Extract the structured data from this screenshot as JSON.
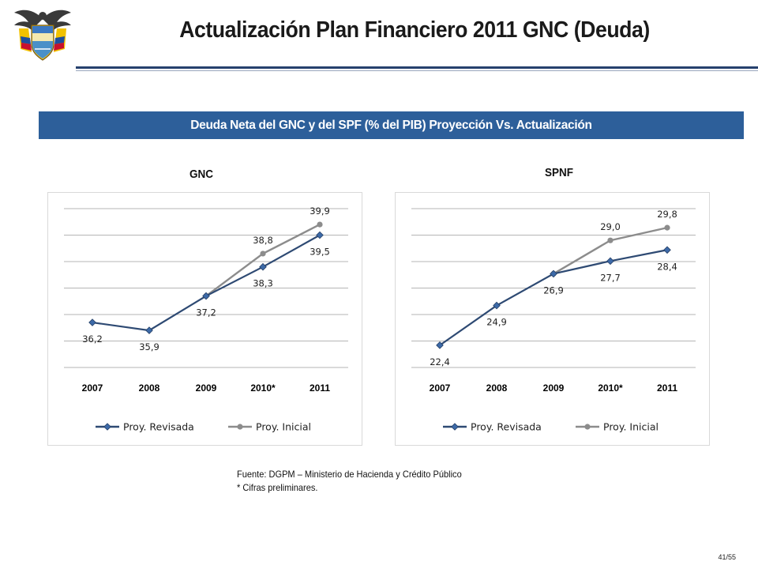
{
  "header": {
    "title": "Actualización Plan Financiero 2011 GNC (Deuda)"
  },
  "banner": {
    "text": "Deuda Neta del GNC y del SPF (% del PIB) Proyección Vs. Actualización"
  },
  "chart_data": [
    {
      "type": "line",
      "title": "GNC",
      "categories": [
        "2007",
        "2008",
        "2009",
        "2010*",
        "2011"
      ],
      "ylim": [
        34.5,
        40.5
      ],
      "grid": true,
      "legend": "bottom",
      "series": [
        {
          "name": "Proy. Revisada",
          "values": [
            36.2,
            35.9,
            37.2,
            38.3,
            39.5
          ],
          "color": "#2e4a73"
        },
        {
          "name": "Proy. Inicial",
          "values": [
            null,
            null,
            37.2,
            38.8,
            39.9
          ],
          "color": "#8c8c8c"
        }
      ],
      "data_labels": [
        {
          "text": "36,2",
          "series": 0,
          "index": 0,
          "pos": "below"
        },
        {
          "text": "35,9",
          "series": 0,
          "index": 1,
          "pos": "below"
        },
        {
          "text": "37,2",
          "series": 0,
          "index": 2,
          "pos": "below"
        },
        {
          "text": "38,3",
          "series": 0,
          "index": 3,
          "pos": "below"
        },
        {
          "text": "39,5",
          "series": 0,
          "index": 4,
          "pos": "below"
        },
        {
          "text": "38,8",
          "series": 1,
          "index": 3,
          "pos": "above"
        },
        {
          "text": "39,9",
          "series": 1,
          "index": 4,
          "pos": "above"
        }
      ]
    },
    {
      "type": "line",
      "title": "SPNF",
      "categories": [
        "2007",
        "2008",
        "2009",
        "2010*",
        "2011"
      ],
      "ylim": [
        21.0,
        31.0
      ],
      "grid": true,
      "legend": "bottom",
      "series": [
        {
          "name": "Proy. Revisada",
          "values": [
            22.4,
            24.9,
            26.9,
            27.7,
            28.4
          ],
          "color": "#2e4a73"
        },
        {
          "name": "Proy. Inicial",
          "values": [
            null,
            null,
            26.9,
            29.0,
            29.8
          ],
          "color": "#8c8c8c"
        }
      ],
      "data_labels": [
        {
          "text": "22,4",
          "series": 0,
          "index": 0,
          "pos": "below"
        },
        {
          "text": "24,9",
          "series": 0,
          "index": 1,
          "pos": "below"
        },
        {
          "text": "26,9",
          "series": 0,
          "index": 2,
          "pos": "below"
        },
        {
          "text": "27,7",
          "series": 0,
          "index": 3,
          "pos": "below"
        },
        {
          "text": "28,4",
          "series": 0,
          "index": 4,
          "pos": "below"
        },
        {
          "text": "29,0",
          "series": 1,
          "index": 3,
          "pos": "above"
        },
        {
          "text": "29,8",
          "series": 1,
          "index": 4,
          "pos": "above"
        }
      ]
    }
  ],
  "footnotes": {
    "source": "Fuente: DGPM – Ministerio de Hacienda y Crédito Público",
    "note": "* Cifras preliminares."
  },
  "page_number": "41/55",
  "colors": {
    "banner": "#2d5f9a",
    "title_rule": "#26416e",
    "series_revisada": "#2e4a73",
    "series_inicial": "#8c8c8c"
  }
}
